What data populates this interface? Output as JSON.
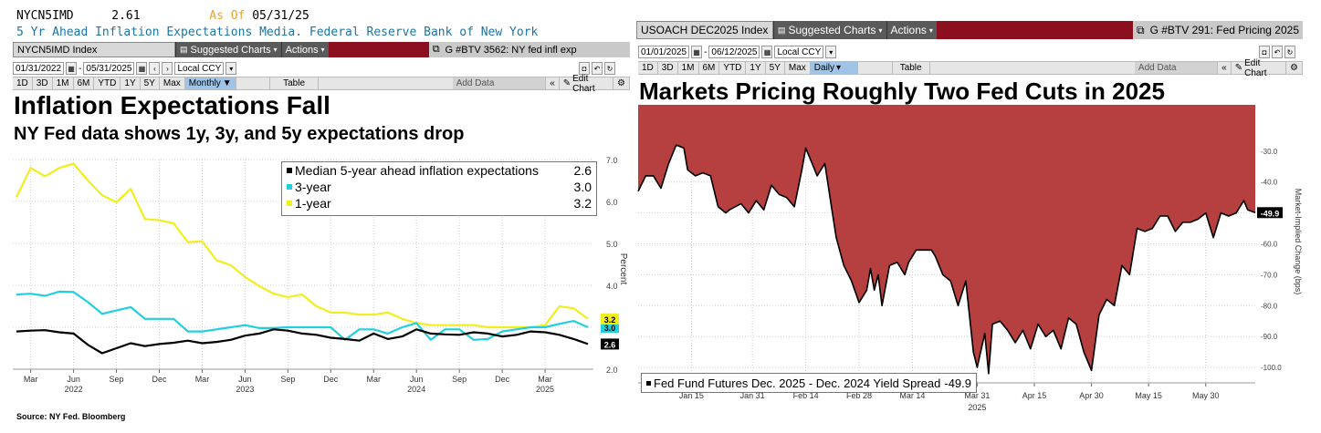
{
  "left": {
    "header_ticker": "NYCN5IMD",
    "header_value": "2.61",
    "header_asof_label": "As Of",
    "header_asof_date": "05/31/25",
    "header_desc": "5 Yr Ahead Inflation Expectations Media. Federal Reserve Bank of New York",
    "ticker_box": "NYCN5IMD Index",
    "suggested_charts": "Suggested Charts",
    "actions": "Actions",
    "chart_ref": "G #BTV 3562: NY fed infl exp",
    "start_date": "01/31/2022",
    "end_date": "05/31/2025",
    "currency": "Local CCY",
    "ranges": [
      "1D",
      "3D",
      "1M",
      "6M",
      "YTD",
      "1Y",
      "5Y",
      "Max"
    ],
    "period": "Monthly",
    "table_label": "Table",
    "add_data": "Add Data",
    "edit_chart": "Edit Chart",
    "source": "Source: NY Fed. Bloomberg",
    "colors": {
      "black_series": "#000000",
      "cyan_series": "#22cfdc",
      "yellow_series": "#f2ee1d"
    }
  },
  "right": {
    "ticker_box": "USOACH DEC2025 Index",
    "suggested_charts": "Suggested Charts",
    "actions": "Actions",
    "chart_ref": "G #BTV 291: Fed Pricing 2025",
    "start_date": "01/01/2025",
    "end_date": "06/12/2025",
    "currency": "Local CCY",
    "ranges": [
      "1D",
      "3D",
      "1M",
      "6M",
      "YTD",
      "1Y",
      "5Y",
      "Max"
    ],
    "period": "Daily",
    "table_label": "Table",
    "add_data": "Add Data",
    "edit_chart": "Edit Chart",
    "colors": {
      "area_fill": "#b5403f",
      "line": "#000000"
    }
  },
  "chart_data": [
    {
      "type": "line",
      "title": "Inflation Expectations Fall",
      "subtitle": "NY Fed data shows 1y, 3y, and 5y expectations drop",
      "ylabel": "Percent",
      "ylim": [
        2.0,
        7.0
      ],
      "yticks": [
        "7.0",
        "6.0",
        "5.0",
        "4.0",
        "3.0",
        "2.0"
      ],
      "grid": true,
      "legend_position": "top-right",
      "x_tick_labels": [
        "Mar",
        "Jun",
        "Sep",
        "Dec",
        "Mar",
        "Jun",
        "Sep",
        "Dec",
        "Mar",
        "Jun",
        "Sep",
        "Dec",
        "Mar"
      ],
      "x_tick_indices": [
        1,
        4,
        7,
        10,
        13,
        16,
        19,
        22,
        25,
        28,
        31,
        34,
        37
      ],
      "x_year_labels": [
        "2022",
        "2023",
        "2024",
        "2025"
      ],
      "x_year_indices": [
        4,
        16,
        28,
        37
      ],
      "x_count": 41,
      "series": [
        {
          "name": "Median 5-year ahead inflation expectations",
          "last": "2.6",
          "color": "#000000",
          "values": [
            2.9,
            2.92,
            2.93,
            2.88,
            2.85,
            2.58,
            2.38,
            2.5,
            2.62,
            2.55,
            2.6,
            2.63,
            2.68,
            2.62,
            2.65,
            2.7,
            2.8,
            2.85,
            2.95,
            2.92,
            2.85,
            2.82,
            2.75,
            2.72,
            2.68,
            2.85,
            2.72,
            2.78,
            2.95,
            2.85,
            2.83,
            2.82,
            2.88,
            2.85,
            2.78,
            2.82,
            2.9,
            2.88,
            2.82,
            2.72,
            2.6
          ]
        },
        {
          "name": "3-year",
          "last": "3.0",
          "color": "#22cfdc",
          "values": [
            3.78,
            3.8,
            3.75,
            3.85,
            3.84,
            3.6,
            3.32,
            3.4,
            3.48,
            3.2,
            3.2,
            3.2,
            2.9,
            2.9,
            2.95,
            3.0,
            3.05,
            2.98,
            2.98,
            3.0,
            3.0,
            3.0,
            3.0,
            2.7,
            2.95,
            2.95,
            2.85,
            3.0,
            3.1,
            2.7,
            2.95,
            2.95,
            2.7,
            2.72,
            2.9,
            2.95,
            3.0,
            3.0,
            3.08,
            3.15,
            3.0
          ]
        },
        {
          "name": "1-year",
          "last": "3.2",
          "color": "#f2ee1d",
          "values": [
            6.1,
            6.8,
            6.6,
            6.8,
            6.9,
            6.5,
            6.15,
            5.98,
            6.3,
            5.58,
            5.55,
            5.48,
            5.03,
            5.05,
            4.6,
            4.48,
            4.2,
            3.98,
            3.8,
            3.72,
            3.78,
            3.5,
            3.35,
            3.35,
            3.3,
            3.3,
            3.35,
            3.2,
            3.1,
            3.05,
            3.05,
            3.05,
            3.05,
            3.0,
            3.0,
            3.0,
            3.0,
            3.05,
            3.5,
            3.45,
            3.2
          ]
        }
      ]
    },
    {
      "type": "area",
      "title": "Markets Pricing Roughly Two Fed Cuts in 2025",
      "ylabel": "Market-Implied Change (bps)",
      "ylim": [
        -105,
        -15
      ],
      "yticks": [
        "-30.0",
        "-40.0",
        "-50.0",
        "-60.0",
        "-70.0",
        "-80.0",
        "-90.0",
        "-100.0"
      ],
      "grid": true,
      "legend_position": "bottom-left",
      "x_tick_labels": [
        "Jan 15",
        "Jan 31",
        "Feb 14",
        "Feb 28",
        "Mar 14",
        "Mar 31",
        "Apr 15",
        "Apr 30",
        "May 15",
        "May 30"
      ],
      "x_tick_days": [
        14,
        30,
        44,
        58,
        72,
        89,
        104,
        119,
        134,
        149
      ],
      "x_year_label": "2025",
      "x_year_day": 89,
      "x_range_days": [
        0,
        162
      ],
      "last_value_label": "-49.9",
      "series": [
        {
          "name": "Fed Fund Futures Dec. 2025 - Dec. 2024 Yield Spread",
          "last": "-49.9",
          "x_days": [
            0,
            2,
            4,
            6,
            8,
            10,
            12,
            13,
            15,
            17,
            19,
            21,
            23,
            24,
            27,
            29,
            31,
            33,
            35,
            37,
            39,
            41,
            43,
            44,
            46,
            47,
            49,
            51,
            52,
            54,
            56,
            58,
            60,
            61,
            62,
            63,
            64,
            66,
            68,
            70,
            71,
            73,
            75,
            77,
            78,
            80,
            82,
            84,
            86,
            88,
            89,
            91,
            92,
            93,
            95,
            97,
            99,
            101,
            103,
            105,
            107,
            109,
            111,
            113,
            115,
            117,
            119,
            121,
            123,
            125,
            127,
            129,
            131,
            133,
            135,
            137,
            139,
            141,
            143,
            145,
            147,
            149,
            151,
            153,
            155,
            157,
            159,
            160,
            162
          ],
          "values": [
            -43,
            -38,
            -38,
            -42,
            -34,
            -28,
            -29,
            -36,
            -38,
            -37,
            -38,
            -48,
            -50,
            -49,
            -47,
            -50,
            -46,
            -49,
            -41,
            -44,
            -45,
            -48,
            -36,
            -29,
            -35,
            -38,
            -34,
            -50,
            -58,
            -67,
            -72,
            -79,
            -75,
            -68,
            -75,
            -70,
            -80,
            -67,
            -66,
            -70,
            -66,
            -62,
            -62,
            -62,
            -64,
            -70,
            -72,
            -80,
            -72,
            -95,
            -100,
            -89,
            -102,
            -86,
            -85,
            -88,
            -92,
            -88,
            -94,
            -86,
            -90,
            -88,
            -94,
            -84,
            -86,
            -95,
            -101,
            -83,
            -78,
            -80,
            -67,
            -70,
            -55,
            -56,
            -55,
            -51,
            -51,
            -56,
            -53,
            -53,
            -52,
            -50,
            -58,
            -50,
            -51,
            -50,
            -46,
            -49,
            -49.9
          ]
        }
      ]
    }
  ]
}
